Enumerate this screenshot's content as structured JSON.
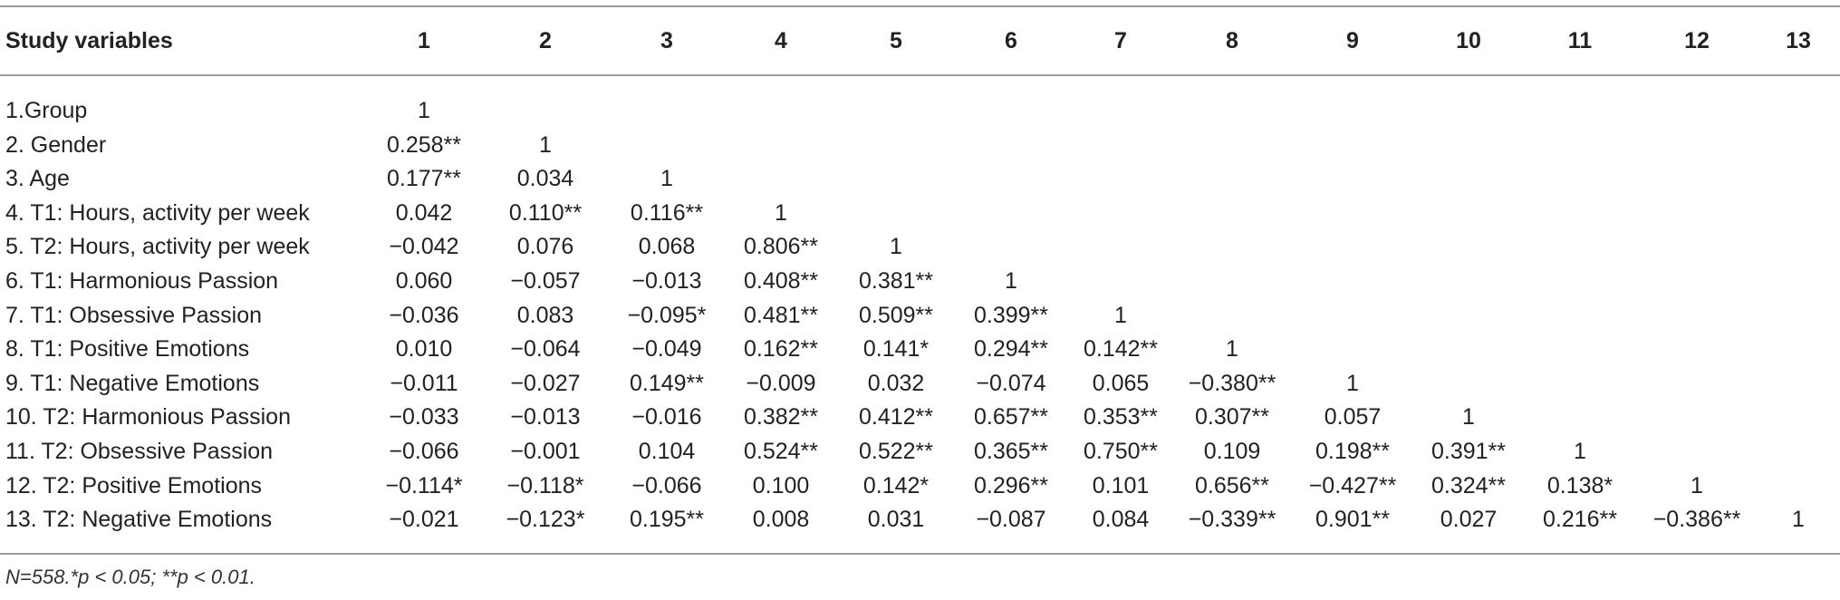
{
  "table": {
    "header": [
      "Study variables",
      "1",
      "2",
      "3",
      "4",
      "5",
      "6",
      "7",
      "8",
      "9",
      "10",
      "11",
      "12",
      "13"
    ],
    "rows": [
      [
        "1.Group",
        "1"
      ],
      [
        "2. Gender",
        "0.258**",
        "1"
      ],
      [
        "3. Age",
        "0.177**",
        "0.034",
        "1"
      ],
      [
        "4. T1: Hours, activity per week",
        "0.042",
        "0.110**",
        "0.116**",
        "1"
      ],
      [
        "5. T2: Hours, activity per week",
        "−0.042",
        "0.076",
        "0.068",
        "0.806**",
        "1"
      ],
      [
        "6. T1: Harmonious Passion",
        "0.060",
        "−0.057",
        "−0.013",
        "0.408**",
        "0.381**",
        "1"
      ],
      [
        "7. T1: Obsessive Passion",
        "−0.036",
        "0.083",
        "−0.095*",
        "0.481**",
        "0.509**",
        "0.399**",
        "1"
      ],
      [
        "8. T1: Positive Emotions",
        "0.010",
        "−0.064",
        "−0.049",
        "0.162**",
        "0.141*",
        "0.294**",
        "0.142**",
        "1"
      ],
      [
        "9. T1: Negative Emotions",
        "−0.011",
        "−0.027",
        "0.149**",
        "−0.009",
        "0.032",
        "−0.074",
        "0.065",
        "−0.380**",
        "1"
      ],
      [
        "10. T2: Harmonious Passion",
        "−0.033",
        "−0.013",
        "−0.016",
        "0.382**",
        "0.412**",
        "0.657**",
        "0.353**",
        "0.307**",
        "0.057",
        "1"
      ],
      [
        "11. T2: Obsessive Passion",
        "−0.066",
        "−0.001",
        "0.104",
        "0.524**",
        "0.522**",
        "0.365**",
        "0.750**",
        "0.109",
        "0.198**",
        "0.391**",
        "1"
      ],
      [
        "12. T2: Positive Emotions",
        "−0.114*",
        "−0.118*",
        "−0.066",
        "0.100",
        "0.142*",
        "0.296**",
        "0.101",
        "0.656**",
        "−0.427**",
        "0.324**",
        "0.138*",
        "1"
      ],
      [
        "13. T2: Negative Emotions",
        "−0.021",
        "−0.123*",
        "0.195**",
        "0.008",
        "0.031",
        "−0.087",
        "0.084",
        "−0.339**",
        "0.901**",
        "0.027",
        "0.216**",
        "−0.386**",
        "1"
      ]
    ],
    "footnote": "N=558.*p < 0.05; **p < 0.01."
  }
}
